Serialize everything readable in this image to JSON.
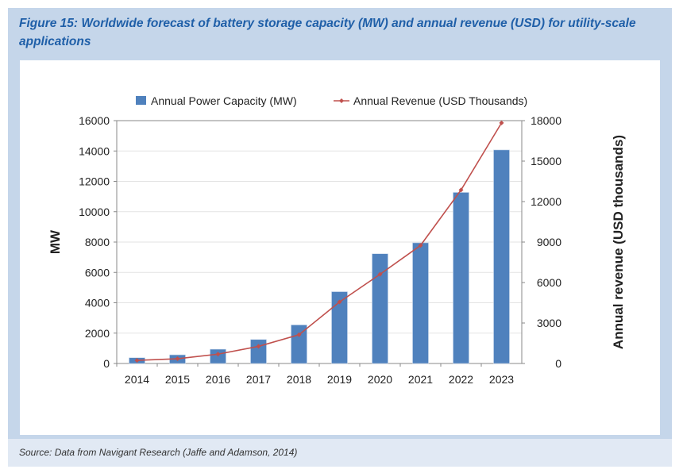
{
  "title": "Figure 15: Worldwide forecast of battery storage capacity (MW) and annual revenue (USD) for utility-scale applications",
  "source": "Source: Data from Navigant Research (Jaffe and Adamson, 2014)",
  "chart_data": {
    "type": "bar+line",
    "categories": [
      "2014",
      "2015",
      "2016",
      "2017",
      "2018",
      "2019",
      "2020",
      "2021",
      "2022",
      "2023"
    ],
    "series": [
      {
        "name": "Annual Power Capacity (MW)",
        "type": "bar",
        "axis": "left",
        "color": "#4f81bd",
        "values": [
          380,
          570,
          940,
          1580,
          2540,
          4730,
          7230,
          7950,
          11270,
          14070
        ]
      },
      {
        "name": "Annual Revenue (USD Thousands)",
        "type": "line",
        "axis": "right",
        "color": "#c0504d",
        "values": [
          230,
          350,
          690,
          1270,
          2130,
          4560,
          6610,
          8750,
          12860,
          17830
        ]
      }
    ],
    "ylabel": "MW",
    "y2label": "Annual revenue (USD  thousands)",
    "ylim": [
      0,
      16000
    ],
    "yticks": [
      0,
      2000,
      4000,
      6000,
      8000,
      10000,
      12000,
      14000,
      16000
    ],
    "y2lim": [
      0,
      18000
    ],
    "y2ticks": [
      0,
      3000,
      6000,
      9000,
      12000,
      15000,
      18000
    ],
    "grid": true,
    "legend": "top"
  }
}
